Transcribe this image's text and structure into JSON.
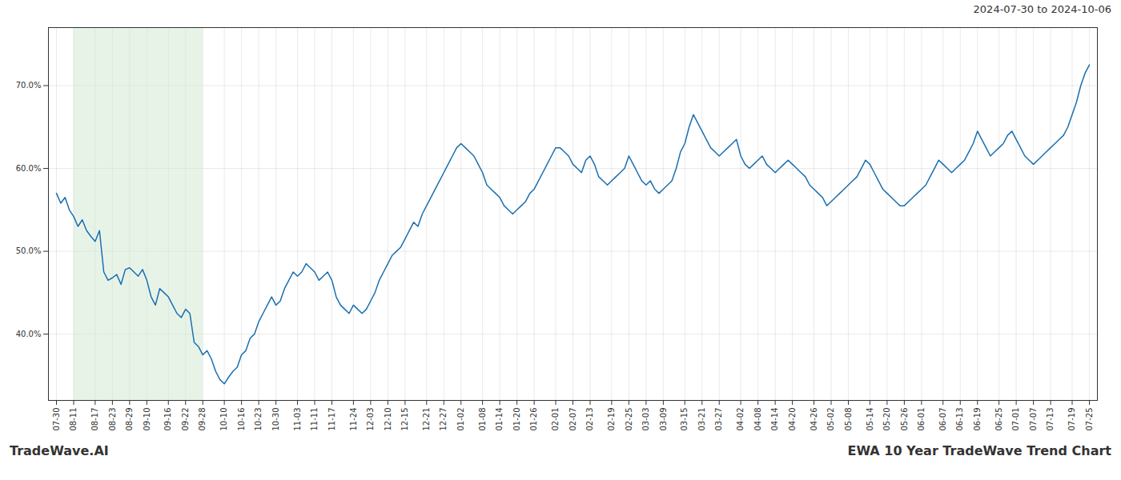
{
  "chart_data": {
    "type": "line",
    "title": "EWA 10 Year TradeWave Trend Chart",
    "subtitle": "2024-07-30 to 2024-10-06",
    "annotations": [
      "TradeWave.AI"
    ],
    "color": "#1a6faf",
    "grid": true,
    "ylim": [
      32,
      77
    ],
    "yticks": [
      {
        "value": 40.0,
        "label": "40.0%"
      },
      {
        "value": 50.0,
        "label": "50.0%"
      },
      {
        "value": 60.0,
        "label": "60.0%"
      },
      {
        "value": 70.0,
        "label": "70.0%"
      }
    ],
    "shaded_region": {
      "from": "08-11",
      "to": "09-28",
      "color": "#d6ead6"
    },
    "categories": [
      "07-30",
      null,
      null,
      null,
      "08-11",
      null,
      null,
      null,
      null,
      "08-17",
      null,
      null,
      null,
      "08-23",
      null,
      null,
      null,
      "08-29",
      null,
      null,
      null,
      "09-10",
      null,
      null,
      null,
      null,
      "09-16",
      null,
      null,
      null,
      "09-22",
      null,
      null,
      null,
      "09-28",
      null,
      null,
      null,
      null,
      "10-10",
      null,
      null,
      null,
      "10-16",
      null,
      null,
      null,
      "10-23",
      null,
      null,
      null,
      "10-30",
      null,
      null,
      null,
      null,
      "11-03",
      null,
      null,
      null,
      "11-11",
      null,
      null,
      null,
      "11-17",
      null,
      null,
      null,
      null,
      "11-24",
      null,
      null,
      null,
      "12-03",
      null,
      null,
      null,
      "12-10",
      null,
      null,
      null,
      "12-15",
      null,
      null,
      null,
      null,
      "12-21",
      null,
      null,
      null,
      "12-27",
      null,
      null,
      null,
      "01-02",
      null,
      null,
      null,
      null,
      "01-08",
      null,
      null,
      null,
      "01-14",
      null,
      null,
      null,
      "01-20",
      null,
      null,
      null,
      "01-26",
      null,
      null,
      null,
      null,
      "02-01",
      null,
      null,
      null,
      "02-07",
      null,
      null,
      null,
      "02-13",
      null,
      null,
      null,
      null,
      "02-19",
      null,
      null,
      null,
      "02-25",
      null,
      null,
      null,
      "03-03",
      null,
      null,
      null,
      "03-09",
      null,
      null,
      null,
      null,
      "03-15",
      null,
      null,
      null,
      "03-21",
      null,
      null,
      null,
      "03-27",
      null,
      null,
      null,
      null,
      "04-02",
      null,
      null,
      null,
      "04-08",
      null,
      null,
      null,
      "04-14",
      null,
      null,
      null,
      "04-20",
      null,
      null,
      null,
      null,
      "04-26",
      null,
      null,
      null,
      "05-02",
      null,
      null,
      null,
      "05-08",
      null,
      null,
      null,
      null,
      "05-14",
      null,
      null,
      null,
      "05-20",
      null,
      null,
      null,
      "05-26",
      null,
      null,
      null,
      "06-01",
      null,
      null,
      null,
      null,
      "06-07",
      null,
      null,
      null,
      "06-13",
      null,
      null,
      null,
      "06-19",
      null,
      null,
      null,
      null,
      "06-25",
      null,
      null,
      null,
      "07-01",
      null,
      null,
      null,
      "07-07",
      null,
      null,
      null,
      "07-13",
      null,
      null,
      null,
      null,
      "07-19",
      null,
      null,
      null,
      "07-25"
    ],
    "values": [
      57.0,
      55.8,
      56.5,
      55.0,
      54.2,
      53.0,
      53.8,
      52.5,
      51.8,
      51.2,
      52.5,
      47.5,
      46.5,
      46.8,
      47.2,
      46.0,
      47.8,
      48.0,
      47.5,
      47.0,
      47.8,
      46.5,
      44.5,
      43.5,
      45.5,
      45.0,
      44.5,
      43.5,
      42.5,
      42.0,
      43.0,
      42.5,
      39.0,
      38.5,
      37.5,
      38.0,
      37.0,
      35.5,
      34.5,
      34.0,
      34.8,
      35.5,
      36.0,
      37.5,
      38.0,
      39.5,
      40.0,
      41.5,
      42.5,
      43.5,
      44.5,
      43.5,
      44.0,
      45.5,
      46.5,
      47.5,
      47.0,
      47.5,
      48.5,
      48.0,
      47.5,
      46.5,
      47.0,
      47.5,
      46.5,
      44.5,
      43.5,
      43.0,
      42.5,
      43.5,
      43.0,
      42.5,
      43.0,
      44.0,
      45.0,
      46.5,
      47.5,
      48.5,
      49.5,
      50.0,
      50.5,
      51.5,
      52.5,
      53.5,
      53.0,
      54.5,
      55.5,
      56.5,
      57.5,
      58.5,
      59.5,
      60.5,
      61.5,
      62.5,
      63.0,
      62.5,
      62.0,
      61.5,
      60.5,
      59.5,
      58.0,
      57.5,
      57.0,
      56.5,
      55.5,
      55.0,
      54.5,
      55.0,
      55.5,
      56.0,
      57.0,
      57.5,
      58.5,
      59.5,
      60.5,
      61.5,
      62.5,
      62.5,
      62.0,
      61.5,
      60.5,
      60.0,
      59.5,
      61.0,
      61.5,
      60.5,
      59.0,
      58.5,
      58.0,
      58.5,
      59.0,
      59.5,
      60.0,
      61.5,
      60.5,
      59.5,
      58.5,
      58.0,
      58.5,
      57.5,
      57.0,
      57.5,
      58.0,
      58.5,
      60.0,
      62.0,
      63.0,
      65.0,
      66.5,
      65.5,
      64.5,
      63.5,
      62.5,
      62.0,
      61.5,
      62.0,
      62.5,
      63.0,
      63.5,
      61.5,
      60.5,
      60.0,
      60.5,
      61.0,
      61.5,
      60.5,
      60.0,
      59.5,
      60.0,
      60.5,
      61.0,
      60.5,
      60.0,
      59.5,
      59.0,
      58.0,
      57.5,
      57.0,
      56.5,
      55.5,
      56.0,
      56.5,
      57.0,
      57.5,
      58.0,
      58.5,
      59.0,
      60.0,
      61.0,
      60.5,
      59.5,
      58.5,
      57.5,
      57.0,
      56.5,
      56.0,
      55.5,
      55.5,
      56.0,
      56.5,
      57.0,
      57.5,
      58.0,
      59.0,
      60.0,
      61.0,
      60.5,
      60.0,
      59.5,
      60.0,
      60.5,
      61.0,
      62.0,
      63.0,
      64.5,
      63.5,
      62.5,
      61.5,
      62.0,
      62.5,
      63.0,
      64.0,
      64.5,
      63.5,
      62.5,
      61.5,
      61.0,
      60.5,
      61.0,
      61.5,
      62.0,
      62.5,
      63.0,
      63.5,
      64.0,
      65.0,
      66.5,
      68.0,
      70.0,
      71.5,
      72.5
    ]
  }
}
